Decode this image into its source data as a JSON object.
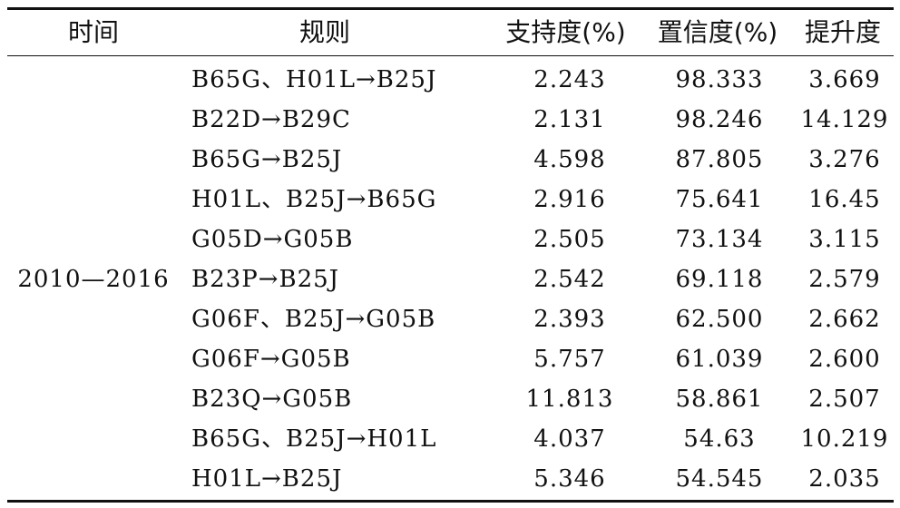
{
  "table": {
    "headers": {
      "time": "时间",
      "rule": "规则",
      "support": "支持度(%)",
      "confidence": "置信度(%)",
      "lift": "提升度"
    },
    "period": "2010—2016",
    "rows": [
      {
        "rule": "B65G、H01L→B25J",
        "support": "2.243",
        "confidence": "98.333",
        "lift": "3.669"
      },
      {
        "rule": "B22D→B29C",
        "support": "2.131",
        "confidence": "98.246",
        "lift": "14.129"
      },
      {
        "rule": "B65G→B25J",
        "support": "4.598",
        "confidence": "87.805",
        "lift": "3.276"
      },
      {
        "rule": "H01L、B25J→B65G",
        "support": "2.916",
        "confidence": "75.641",
        "lift": "16.45"
      },
      {
        "rule": "G05D→G05B",
        "support": "2.505",
        "confidence": "73.134",
        "lift": "3.115"
      },
      {
        "rule": "B23P→B25J",
        "support": "2.542",
        "confidence": "69.118",
        "lift": "2.579"
      },
      {
        "rule": "G06F、B25J→G05B",
        "support": "2.393",
        "confidence": "62.500",
        "lift": "2.662"
      },
      {
        "rule": "G06F→G05B",
        "support": "5.757",
        "confidence": "61.039",
        "lift": "2.600"
      },
      {
        "rule": "B23Q→G05B",
        "support": "11.813",
        "confidence": "58.861",
        "lift": "2.507"
      },
      {
        "rule": "B65G、B25J→H01L",
        "support": "4.037",
        "confidence": "54.63",
        "lift": "10.219"
      },
      {
        "rule": "H01L→B25J",
        "support": "5.346",
        "confidence": "54.545",
        "lift": "2.035"
      }
    ]
  }
}
